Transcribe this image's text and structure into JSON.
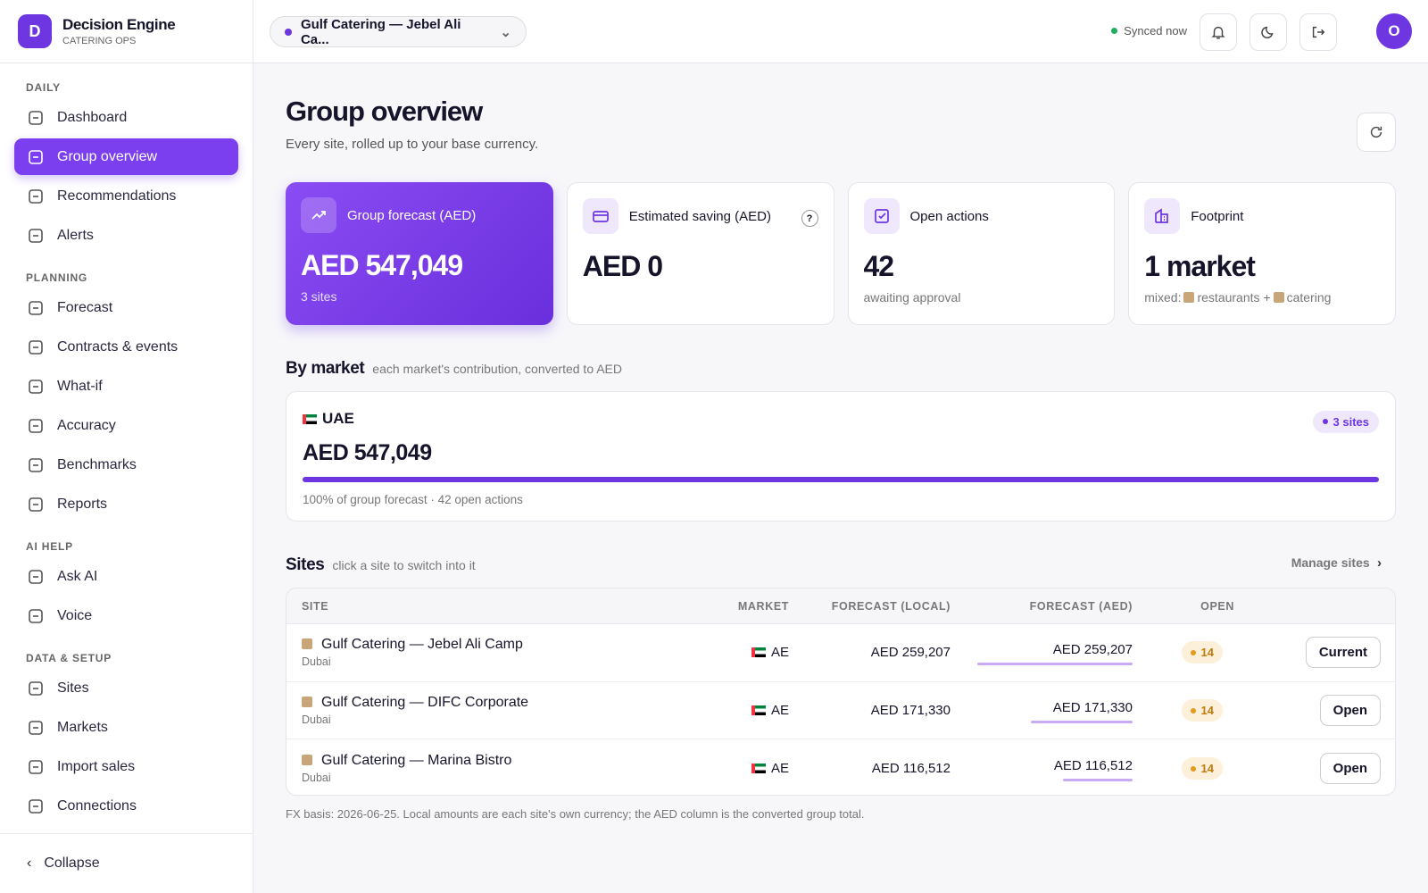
{
  "sidebar": {
    "brand": {
      "initial": "D",
      "name": "Decision Engine",
      "subtitle": "CATERING OPS"
    },
    "sections": [
      {
        "title": "DAILY",
        "items": [
          "Dashboard",
          "Group overview",
          "Recommendations",
          "Alerts"
        ]
      },
      {
        "title": "PLANNING",
        "items": [
          "Forecast",
          "Contracts & events",
          "What-if",
          "Accuracy",
          "Benchmarks",
          "Reports"
        ]
      },
      {
        "title": "AI HELP",
        "items": [
          "Ask AI",
          "Voice"
        ]
      },
      {
        "title": "DATA & SETUP",
        "items": [
          "Sites",
          "Markets",
          "Import sales",
          "Connections"
        ]
      }
    ],
    "collapse": "Collapse"
  },
  "topbar": {
    "site_selector": "Gulf Catering — Jebel Ali Ca...",
    "sync_status": "Synced now",
    "avatar": "O"
  },
  "header": {
    "title": "Group overview",
    "subtitle": "Every site, rolled up to your base currency."
  },
  "kpis": [
    {
      "label": "Group forecast (AED)",
      "value": "AED 547,049",
      "note": "3 sites"
    },
    {
      "label": "Estimated saving (AED)",
      "value": "AED 0",
      "help": "?"
    },
    {
      "label": "Open actions",
      "value": "42",
      "note": "awaiting approval"
    },
    {
      "label": "Footprint",
      "value": "1 market",
      "note": [
        "mixed:",
        "restaurants +",
        "catering"
      ]
    }
  ],
  "by_market": {
    "title": "By market",
    "subtitle": "each market's contribution, converted to AED",
    "markets": [
      {
        "name": "UAE",
        "badge": "3 sites",
        "value": "AED 547,049",
        "note": "100% of group forecast · 42 open actions"
      }
    ]
  },
  "sites": {
    "title": "Sites",
    "subtitle": "click a site to switch into it",
    "manage": "Manage sites",
    "columns": [
      "SITE",
      "MARKET",
      "FORECAST (LOCAL)",
      "FORECAST (AED)",
      "OPEN"
    ],
    "rows": [
      {
        "name": "Gulf Catering — Jebel Ali Camp",
        "city": "Dubai",
        "market": "AE",
        "local": "AED 259,207",
        "aed": "AED 259,207",
        "open": "14",
        "action": "Current"
      },
      {
        "name": "Gulf Catering — DIFC Corporate",
        "city": "Dubai",
        "market": "AE",
        "local": "AED 171,330",
        "aed": "AED 171,330",
        "open": "14",
        "action": "Open"
      },
      {
        "name": "Gulf Catering — Marina Bistro",
        "city": "Dubai",
        "market": "AE",
        "local": "AED 116,512",
        "aed": "AED 116,512",
        "open": "14",
        "action": "Open"
      }
    ],
    "footnote": "FX basis: 2026-06-25. Local amounts are each site's own currency; the AED column is the converted group total."
  }
}
